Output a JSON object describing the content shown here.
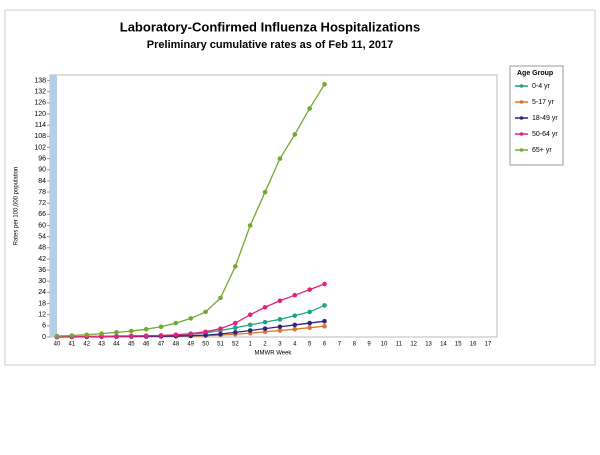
{
  "chart_data": {
    "type": "line",
    "title": "Laboratory-Confirmed Influenza Hospitalizations",
    "subtitle": "Preliminary cumulative rates as of Feb 11, 2017",
    "x_label": "MMWR Week",
    "y_label": "Rates per 100,000 population",
    "legend_title": "Age Group",
    "legend_position": "right",
    "grid": false,
    "categories": [
      "40",
      "41",
      "42",
      "43",
      "44",
      "45",
      "46",
      "47",
      "48",
      "49",
      "50",
      "51",
      "52",
      "1",
      "2",
      "3",
      "4",
      "5",
      "6",
      "7",
      "8",
      "9",
      "10",
      "11",
      "12",
      "13",
      "14",
      "15",
      "16",
      "17"
    ],
    "ylim": [
      0,
      141
    ],
    "yticks": [
      0,
      6,
      12,
      18,
      24,
      30,
      36,
      42,
      48,
      54,
      60,
      66,
      72,
      78,
      84,
      90,
      96,
      102,
      108,
      114,
      120,
      126,
      132,
      138
    ],
    "series": [
      {
        "name": "0-4 yr",
        "color": "#1fa386",
        "values": [
          0.1,
          0.2,
          0.3,
          0.4,
          0.5,
          0.6,
          0.7,
          0.8,
          1,
          1.5,
          2.2,
          3.5,
          5,
          6.5,
          8,
          9.5,
          11.5,
          13.5,
          17,
          null,
          null,
          null,
          null,
          null,
          null,
          null,
          null,
          null,
          null,
          null
        ]
      },
      {
        "name": "5-17 yr",
        "color": "#e0742a",
        "values": [
          0,
          0.1,
          0.1,
          0.1,
          0.2,
          0.2,
          0.3,
          0.3,
          0.4,
          0.5,
          0.7,
          1,
          1.5,
          2,
          2.8,
          3.5,
          4.2,
          5,
          5.8,
          null,
          null,
          null,
          null,
          null,
          null,
          null,
          null,
          null,
          null,
          null
        ]
      },
      {
        "name": "18-49 yr",
        "color": "#33237f",
        "values": [
          0,
          0.1,
          0.1,
          0.2,
          0.2,
          0.3,
          0.3,
          0.4,
          0.5,
          0.7,
          1,
          1.6,
          2.5,
          3.5,
          4.5,
          5.5,
          6.5,
          7.5,
          8.5,
          null,
          null,
          null,
          null,
          null,
          null,
          null,
          null,
          null,
          null,
          null
        ]
      },
      {
        "name": "50-64 yr",
        "color": "#e2237c",
        "values": [
          0.1,
          0.2,
          0.2,
          0.3,
          0.4,
          0.5,
          0.6,
          0.8,
          1.2,
          1.8,
          2.8,
          4.5,
          7.5,
          12,
          16,
          19.5,
          22.5,
          25.5,
          28.5,
          null,
          null,
          null,
          null,
          null,
          null,
          null,
          null,
          null,
          null,
          null
        ]
      },
      {
        "name": "65+ yr",
        "color": "#72a931",
        "values": [
          0.5,
          0.8,
          1.2,
          1.8,
          2.5,
          3.2,
          4.2,
          5.5,
          7.5,
          10,
          13.5,
          21,
          38,
          60,
          78,
          96,
          109,
          123,
          136,
          null,
          null,
          null,
          null,
          null,
          null,
          null,
          null,
          null,
          null,
          null
        ]
      }
    ]
  }
}
